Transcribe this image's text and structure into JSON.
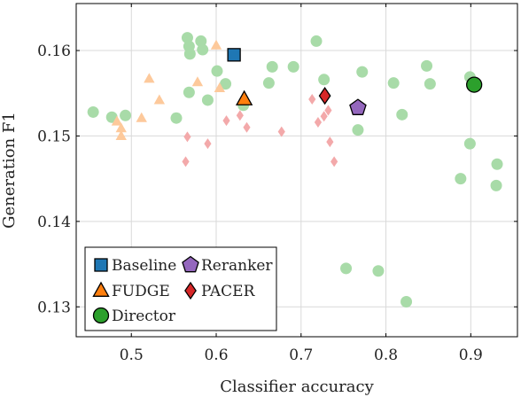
{
  "chart_data": {
    "type": "scatter",
    "xlabel": "Classifier accuracy",
    "ylabel": "Generation F1",
    "xlim": [
      0.435,
      0.955
    ],
    "ylim": [
      0.1265,
      0.1655
    ],
    "xticks": [
      0.5,
      0.6,
      0.7,
      0.8,
      0.9
    ],
    "xtick_labels": [
      "0.5",
      "0.6",
      "0.7",
      "0.8",
      "0.9"
    ],
    "yticks": [
      0.13,
      0.14,
      0.15,
      0.16
    ],
    "ytick_labels": [
      "0.13",
      "0.14",
      "0.15",
      "0.16"
    ],
    "grid": true,
    "legend": {
      "position": "bottom-left",
      "entries": [
        {
          "label": "Baseline",
          "series": "baseline"
        },
        {
          "label": "Reranker",
          "series": "reranker"
        },
        {
          "label": "FUDGE",
          "series": "fudge"
        },
        {
          "label": "PACER",
          "series": "pacer"
        },
        {
          "label": "Director",
          "series": "director"
        }
      ]
    },
    "series": [
      {
        "id": "director_runs",
        "marker": "circle",
        "color": "#a8dba8",
        "emphasis": false,
        "points": [
          [
            0.455,
            0.1528
          ],
          [
            0.477,
            0.1522
          ],
          [
            0.493,
            0.1524
          ],
          [
            0.553,
            0.1521
          ],
          [
            0.566,
            0.1615
          ],
          [
            0.568,
            0.1605
          ],
          [
            0.569,
            0.1596
          ],
          [
            0.568,
            0.1551
          ],
          [
            0.582,
            0.1611
          ],
          [
            0.584,
            0.1601
          ],
          [
            0.59,
            0.1542
          ],
          [
            0.601,
            0.1576
          ],
          [
            0.611,
            0.1561
          ],
          [
            0.632,
            0.1536
          ],
          [
            0.662,
            0.1562
          ],
          [
            0.666,
            0.1581
          ],
          [
            0.691,
            0.1581
          ],
          [
            0.718,
            0.1611
          ],
          [
            0.727,
            0.1566
          ],
          [
            0.772,
            0.1575
          ],
          [
            0.809,
            0.1562
          ],
          [
            0.819,
            0.1525
          ],
          [
            0.848,
            0.1582
          ],
          [
            0.852,
            0.1561
          ],
          [
            0.899,
            0.1569
          ],
          [
            0.767,
            0.1507
          ],
          [
            0.899,
            0.1491
          ],
          [
            0.931,
            0.1467
          ],
          [
            0.888,
            0.145
          ],
          [
            0.93,
            0.1442
          ],
          [
            0.753,
            0.1345
          ],
          [
            0.791,
            0.1342
          ],
          [
            0.824,
            0.1306
          ]
        ]
      },
      {
        "id": "fudge_runs",
        "marker": "triangle",
        "color": "#fdc99b",
        "emphasis": false,
        "points": [
          [
            0.521,
            0.1567
          ],
          [
            0.533,
            0.1542
          ],
          [
            0.512,
            0.1521
          ],
          [
            0.483,
            0.1517
          ],
          [
            0.488,
            0.1509
          ],
          [
            0.488,
            0.15
          ],
          [
            0.6,
            0.1606
          ],
          [
            0.578,
            0.1563
          ],
          [
            0.604,
            0.1556
          ]
        ]
      },
      {
        "id": "pacer_runs",
        "marker": "diamond",
        "color": "#f3a9aa",
        "emphasis": false,
        "points": [
          [
            0.566,
            0.1499
          ],
          [
            0.564,
            0.147
          ],
          [
            0.59,
            0.1491
          ],
          [
            0.612,
            0.1518
          ],
          [
            0.628,
            0.1524
          ],
          [
            0.636,
            0.151
          ],
          [
            0.677,
            0.1505
          ],
          [
            0.713,
            0.1543
          ],
          [
            0.72,
            0.1516
          ],
          [
            0.727,
            0.1523
          ],
          [
            0.732,
            0.153
          ],
          [
            0.734,
            0.1493
          ],
          [
            0.739,
            0.147
          ]
        ]
      },
      {
        "id": "baseline",
        "name": "Baseline",
        "marker": "square",
        "color": "#1f77b4",
        "emphasis": true,
        "points": [
          [
            0.621,
            0.1595
          ]
        ]
      },
      {
        "id": "fudge",
        "name": "FUDGE",
        "marker": "triangle",
        "color": "#ff7f0e",
        "emphasis": true,
        "points": [
          [
            0.633,
            0.1543
          ]
        ]
      },
      {
        "id": "pacer",
        "name": "PACER",
        "marker": "diamond",
        "color": "#d62728",
        "emphasis": true,
        "points": [
          [
            0.728,
            0.1547
          ]
        ]
      },
      {
        "id": "reranker",
        "name": "Reranker",
        "marker": "pentagon",
        "color": "#9467bd",
        "emphasis": true,
        "points": [
          [
            0.767,
            0.1533
          ]
        ]
      },
      {
        "id": "director",
        "name": "Director",
        "marker": "circle",
        "color": "#2ca02c",
        "emphasis": true,
        "points": [
          [
            0.904,
            0.156
          ]
        ]
      }
    ]
  }
}
